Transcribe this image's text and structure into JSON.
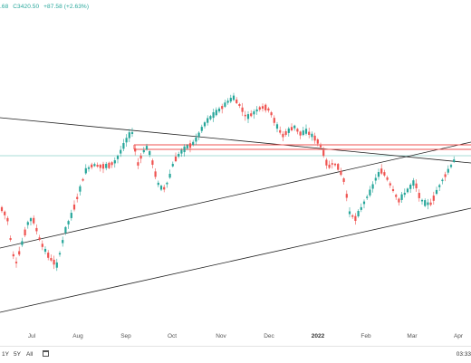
{
  "readout": {
    "partial_value": ".68",
    "close": "C3420.50",
    "change": "+87.58 (+2.63%)",
    "color": "#26a69a"
  },
  "x_axis": {
    "labels": [
      "Jul",
      "Aug",
      "Sep",
      "Oct",
      "Nov",
      "Dec",
      "2022",
      "Feb",
      "Mar",
      "Apr"
    ],
    "bold_label": "2022"
  },
  "bottom_bar": {
    "ranges": [
      "1Y",
      "5Y",
      "All"
    ],
    "calendar_icon": "calendar-icon",
    "time": "03:33"
  },
  "colors": {
    "up": "#26a69a",
    "down": "#ef5350",
    "trendline": "#222222",
    "horizontal_zone": "#ef5350",
    "price_line": "#26a69a"
  },
  "chart_data": {
    "type": "candlestick",
    "x": [
      "Jul",
      "Aug",
      "Sep",
      "Oct",
      "Nov",
      "Dec",
      "2022",
      "Feb",
      "Mar",
      "Apr"
    ],
    "last_close": 3420.5,
    "change": 87.58,
    "change_pct": 2.63,
    "grid": false,
    "drawings": [
      "three sloped trendlines",
      "horizontal resistance zone (red)"
    ]
  }
}
